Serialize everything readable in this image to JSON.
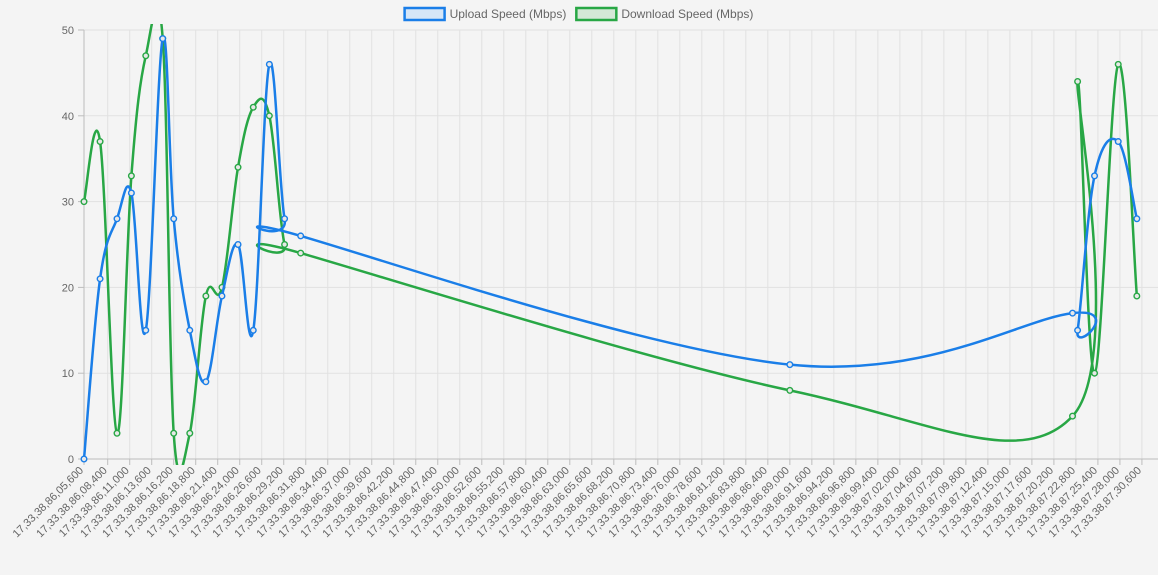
{
  "chart_data": {
    "type": "line",
    "legend_position": "top",
    "grid": true,
    "ylim": [
      0,
      50
    ],
    "yticks": [
      0,
      10,
      20,
      30,
      40,
      50
    ],
    "x_labels": [
      "17,33,38,86,05,600",
      "17,33,38,86,08,400",
      "17,33,38,86,11,000",
      "17,33,38,86,13,600",
      "17,33,38,86,16,200",
      "17,33,38,86,18,800",
      "17,33,38,86,21,400",
      "17,33,38,86,24,000",
      "17,33,38,86,26,600",
      "17,33,38,86,29,200",
      "17,33,38,86,31,800",
      "17,33,38,86,34,400",
      "17,33,38,86,37,000",
      "17,33,38,86,39,600",
      "17,33,38,86,42,200",
      "17,33,38,86,44,800",
      "17,33,38,86,47,400",
      "17,33,38,86,50,000",
      "17,33,38,86,52,600",
      "17,33,38,86,55,200",
      "17,33,38,86,57,800",
      "17,33,38,86,60,400",
      "17,33,38,86,63,000",
      "17,33,38,86,65,600",
      "17,33,38,86,68,200",
      "17,33,38,86,70,800",
      "17,33,38,86,73,400",
      "17,33,38,86,76,000",
      "17,33,38,86,78,600",
      "17,33,38,86,81,200",
      "17,33,38,86,83,800",
      "17,33,38,86,86,400",
      "17,33,38,86,89,000",
      "17,33,38,86,91,600",
      "17,33,38,86,94,200",
      "17,33,38,86,96,800",
      "17,33,38,86,99,400",
      "17,33,38,87,02,000",
      "17,33,38,87,04,600",
      "17,33,38,87,07,200",
      "17,33,38,87,09,800",
      "17,33,38,87,12,400",
      "17,33,38,87,15,000",
      "17,33,38,87,17,600",
      "17,33,38,87,20,200",
      "17,33,38,87,22,800",
      "17,33,38,87,25,400",
      "17,33,38,87,28,000",
      "17,33,38,87,30,600"
    ],
    "x_label_values": [
      5600,
      8400,
      11000,
      13600,
      16200,
      18800,
      21400,
      24000,
      26600,
      29200,
      31800,
      34400,
      37000,
      39600,
      42200,
      44800,
      47400,
      50000,
      52600,
      55200,
      57800,
      60400,
      63000,
      65600,
      68200,
      70800,
      73400,
      76000,
      78600,
      81200,
      83800,
      86400,
      89000,
      91600,
      94200,
      96800,
      99400,
      102000,
      104600,
      107200,
      109800,
      112400,
      115000,
      117600,
      120200,
      122800,
      125400,
      128000,
      130600
    ],
    "xlim": [
      5600,
      132500
    ],
    "series": [
      {
        "name": "Upload Speed (Mbps)",
        "color": "#1a7ee8",
        "x": [
          5600,
          7500,
          9500,
          11200,
          12900,
          14900,
          16200,
          18100,
          20000,
          21900,
          23800,
          25600,
          27500,
          29300,
          31200,
          89000,
          122400,
          123000,
          125000,
          127800,
          130000
        ],
        "y": [
          0,
          21,
          28,
          31,
          15,
          49,
          28,
          15,
          9,
          19,
          25,
          15,
          46,
          28,
          26,
          11,
          17,
          15,
          33,
          37,
          28
        ]
      },
      {
        "name": "Download Speed (Mbps)",
        "color": "#28a745",
        "x": [
          5600,
          7500,
          9500,
          11200,
          12900,
          14900,
          16200,
          18100,
          20000,
          21900,
          23800,
          25600,
          27500,
          29300,
          31200,
          89000,
          122400,
          123000,
          125000,
          127800,
          130000
        ],
        "y": [
          30,
          37,
          3,
          33,
          47,
          49,
          3,
          3,
          19,
          20,
          34,
          41,
          40,
          25,
          24,
          8,
          5,
          44,
          10,
          46,
          19
        ]
      }
    ]
  }
}
